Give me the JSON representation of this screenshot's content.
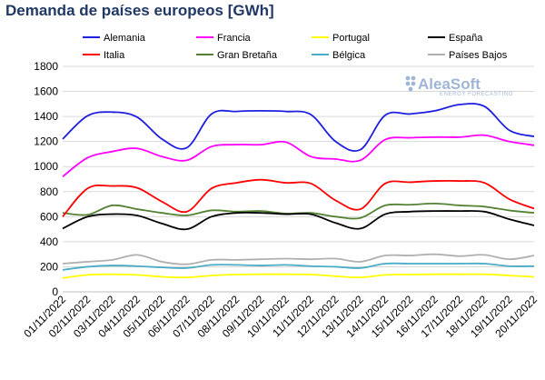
{
  "chart_data": {
    "type": "line",
    "title": "Demanda de países europeos [GWh]",
    "xlabel": "",
    "ylabel": "",
    "ylim": [
      0,
      1800
    ],
    "yticks": [
      0,
      200,
      400,
      600,
      800,
      1000,
      1200,
      1400,
      1600,
      1800
    ],
    "grid": true,
    "legend_position": "top",
    "categories": [
      "01/11/2022",
      "02/11/2022",
      "03/11/2022",
      "04/11/2022",
      "05/11/2022",
      "06/11/2022",
      "07/11/2022",
      "08/11/2022",
      "09/11/2022",
      "10/11/2022",
      "11/11/2022",
      "12/11/2022",
      "13/11/2022",
      "14/11/2022",
      "15/11/2022",
      "16/11/2022",
      "17/11/2022",
      "18/11/2022",
      "19/11/2022",
      "20/11/2022"
    ],
    "series": [
      {
        "name": "Alemania",
        "color": "#1f1fe0",
        "values": [
          1220,
          1405,
          1435,
          1395,
          1220,
          1150,
          1420,
          1440,
          1445,
          1440,
          1415,
          1200,
          1135,
          1410,
          1420,
          1445,
          1495,
          1480,
          1290,
          1240
        ]
      },
      {
        "name": "Francia",
        "color": "#ff00ff",
        "values": [
          920,
          1070,
          1120,
          1145,
          1080,
          1050,
          1160,
          1175,
          1175,
          1195,
          1080,
          1060,
          1050,
          1215,
          1230,
          1235,
          1235,
          1250,
          1200,
          1170
        ]
      },
      {
        "name": "Portugal",
        "color": "#ffff00",
        "values": [
          110,
          135,
          140,
          135,
          120,
          115,
          130,
          138,
          140,
          140,
          138,
          125,
          115,
          135,
          138,
          140,
          140,
          140,
          130,
          120
        ]
      },
      {
        "name": "España",
        "color": "#000000",
        "values": [
          505,
          600,
          620,
          610,
          545,
          500,
          600,
          630,
          630,
          620,
          620,
          550,
          505,
          620,
          640,
          645,
          645,
          640,
          580,
          530
        ]
      },
      {
        "name": "Italia",
        "color": "#ff0000",
        "values": [
          600,
          825,
          845,
          830,
          720,
          640,
          825,
          870,
          895,
          870,
          865,
          730,
          660,
          865,
          875,
          885,
          885,
          870,
          740,
          665
        ]
      },
      {
        "name": "Gran Bretaña",
        "color": "#548235",
        "values": [
          630,
          615,
          690,
          660,
          630,
          610,
          650,
          640,
          645,
          625,
          630,
          600,
          590,
          690,
          695,
          705,
          690,
          680,
          650,
          630
        ]
      },
      {
        "name": "Bélgica",
        "color": "#4bacc6",
        "values": [
          175,
          200,
          210,
          205,
          195,
          190,
          215,
          215,
          210,
          215,
          205,
          200,
          190,
          225,
          225,
          225,
          225,
          225,
          205,
          205
        ]
      },
      {
        "name": "Países Bajos",
        "color": "#b0b0b0",
        "values": [
          225,
          240,
          255,
          295,
          240,
          220,
          255,
          255,
          260,
          265,
          260,
          265,
          240,
          290,
          290,
          300,
          285,
          295,
          260,
          290
        ]
      }
    ]
  },
  "watermark": {
    "brand": "AleaSoft",
    "tagline": "ENERGY FORECASTING"
  }
}
